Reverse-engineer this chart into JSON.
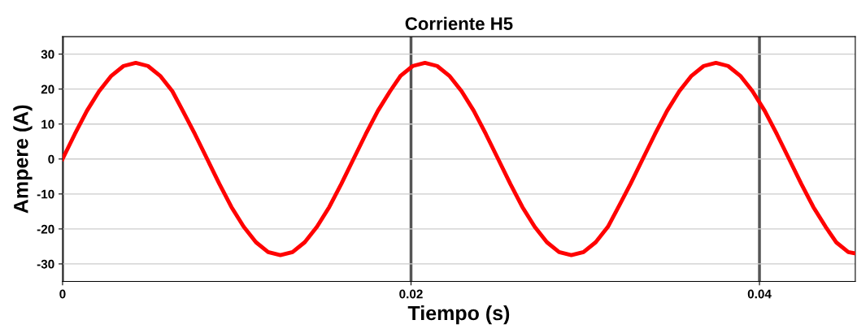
{
  "chart_data": {
    "type": "line",
    "title": "Corriente H5",
    "xlabel": "Tiempo (s)",
    "ylabel": "Ampere (A)",
    "x": [
      0,
      0.0007,
      0.0014,
      0.0021,
      0.0028,
      0.0035,
      0.0042,
      0.0049,
      0.0056,
      0.0063,
      0.0069,
      0.0076,
      0.0083,
      0.009,
      0.0097,
      0.0104,
      0.0111,
      0.0118,
      0.0125,
      0.0132,
      0.0139,
      0.0146,
      0.0153,
      0.016,
      0.0167,
      0.0174,
      0.0181,
      0.0188,
      0.0194,
      0.0201,
      0.0208,
      0.0215,
      0.0222,
      0.0229,
      0.0236,
      0.0243,
      0.025,
      0.0257,
      0.0264,
      0.0271,
      0.0278,
      0.0285,
      0.0292,
      0.0299,
      0.0306,
      0.0313,
      0.0319,
      0.0326,
      0.0333,
      0.034,
      0.0347,
      0.0354,
      0.0361,
      0.0368,
      0.0375,
      0.0382,
      0.0389,
      0.0396,
      0.0403,
      0.041,
      0.0417,
      0.0424,
      0.0431,
      0.0438,
      0.0444,
      0.0451,
      0.0455
    ],
    "series": [
      {
        "color": "#ff0000",
        "values": [
          0,
          7.1,
          13.8,
          19.4,
          23.8,
          26.6,
          27.5,
          26.6,
          23.8,
          19.4,
          13.8,
          7.1,
          0,
          -7.1,
          -13.8,
          -19.4,
          -23.8,
          -26.6,
          -27.5,
          -26.6,
          -23.8,
          -19.4,
          -13.8,
          -7.1,
          0,
          7.1,
          13.8,
          19.4,
          23.8,
          26.6,
          27.5,
          26.6,
          23.8,
          19.4,
          13.8,
          7.1,
          0,
          -7.1,
          -13.8,
          -19.4,
          -23.8,
          -26.6,
          -27.5,
          -26.6,
          -23.8,
          -19.4,
          -13.8,
          -7.1,
          0,
          7.1,
          13.8,
          19.4,
          23.8,
          26.6,
          27.5,
          26.6,
          23.8,
          19.4,
          13.8,
          7.1,
          0,
          -7.1,
          -13.8,
          -19.4,
          -23.8,
          -26.6,
          -27.0
        ]
      }
    ],
    "xlim": [
      0,
      0.0455
    ],
    "xticks": [
      0,
      0.02,
      0.04
    ],
    "ylim": [
      -35,
      35
    ],
    "yticks": [
      -30,
      -20,
      -10,
      0,
      10,
      20,
      30
    ],
    "grid": true,
    "marker": "none",
    "line_style": "solid"
  }
}
